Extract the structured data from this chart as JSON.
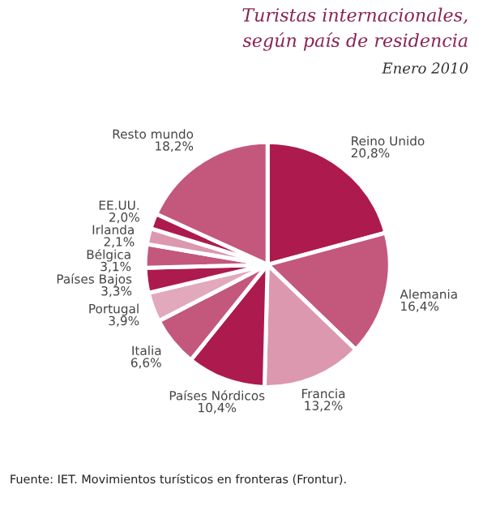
{
  "chart_data": {
    "type": "pie",
    "title": "Turistas internacionales,\nsegún país de residencia",
    "subtitle": "Enero 2010",
    "categories": [
      "Reino Unido",
      "Alemania",
      "Francia",
      "Países Nórdicos",
      "Italia",
      "Portugal",
      "Países Bajos",
      "Bélgica",
      "Irlanda",
      "EE.UU.",
      "Resto mundo"
    ],
    "values": [
      20.8,
      16.4,
      13.2,
      10.4,
      6.6,
      3.9,
      3.3,
      3.1,
      2.1,
      2.0,
      18.2
    ],
    "value_labels": [
      "20,8%",
      "16,4%",
      "13,2%",
      "10,4%",
      "6,6%",
      "3,9%",
      "3,3%",
      "3,1%",
      "2,1%",
      "2,0%",
      "18,2%"
    ],
    "colors": [
      "#ad1a4e",
      "#c4577c",
      "#dc98ae",
      "#ad1a4e",
      "#c4577c",
      "#e2a9bc",
      "#ad1a4e",
      "#c4577c",
      "#dc98ae",
      "#ad1a4e",
      "#c4577c"
    ],
    "annotations": [
      "Fuente: IET. Movimientos turísticos en fronteras (Frontur)."
    ]
  }
}
